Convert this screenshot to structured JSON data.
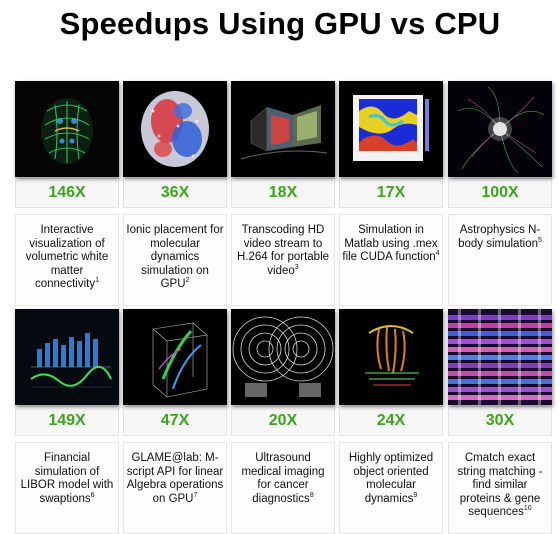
{
  "page": {
    "title": "Speedups Using GPU vs CPU"
  },
  "colors": {
    "speedup_green": "#3ea31e",
    "background": "#ffffff",
    "thumb_bg": "#0a0a0a"
  },
  "items": [
    {
      "speedup": "146X",
      "description": "Interactive visualization of volumetric white matter connectivity",
      "ref": "1",
      "image": "brain-scan-image"
    },
    {
      "speedup": "36X",
      "description": "Ionic placement for molecular dynamics simulation on GPU",
      "ref": "2",
      "image": "molecule-image"
    },
    {
      "speedup": "18X",
      "description": "Transcoding HD video stream to H.264 for portable video",
      "ref": "3",
      "image": "video-stream-image"
    },
    {
      "speedup": "17X",
      "description": "Simulation in Matlab using .mex file CUDA function",
      "ref": "4",
      "image": "matlab-heatmap-image"
    },
    {
      "speedup": "100X",
      "description": "Astrophysics N-body simulation",
      "ref": "5",
      "image": "nbody-galaxy-image"
    },
    {
      "speedup": "149X",
      "description": "Financial simulation of LIBOR model with swaptions",
      "ref": "6",
      "image": "financial-chart-image"
    },
    {
      "speedup": "47X",
      "description": "GLAME@lab: M-script API for linear Algebra operations on GPU",
      "ref": "7",
      "image": "3d-volume-image"
    },
    {
      "speedup": "20X",
      "description": "Ultrasound medical imaging for cancer diagnostics",
      "ref": "8",
      "image": "ultrasound-image"
    },
    {
      "speedup": "24X",
      "description": "Highly optimized object oriented molecular dynamics",
      "ref": "9",
      "image": "protein-structure-image"
    },
    {
      "speedup": "30X",
      "description": "Cmatch exact string matching - find similar proteins & gene sequences",
      "ref": "10",
      "image": "gene-sequence-image"
    }
  ]
}
